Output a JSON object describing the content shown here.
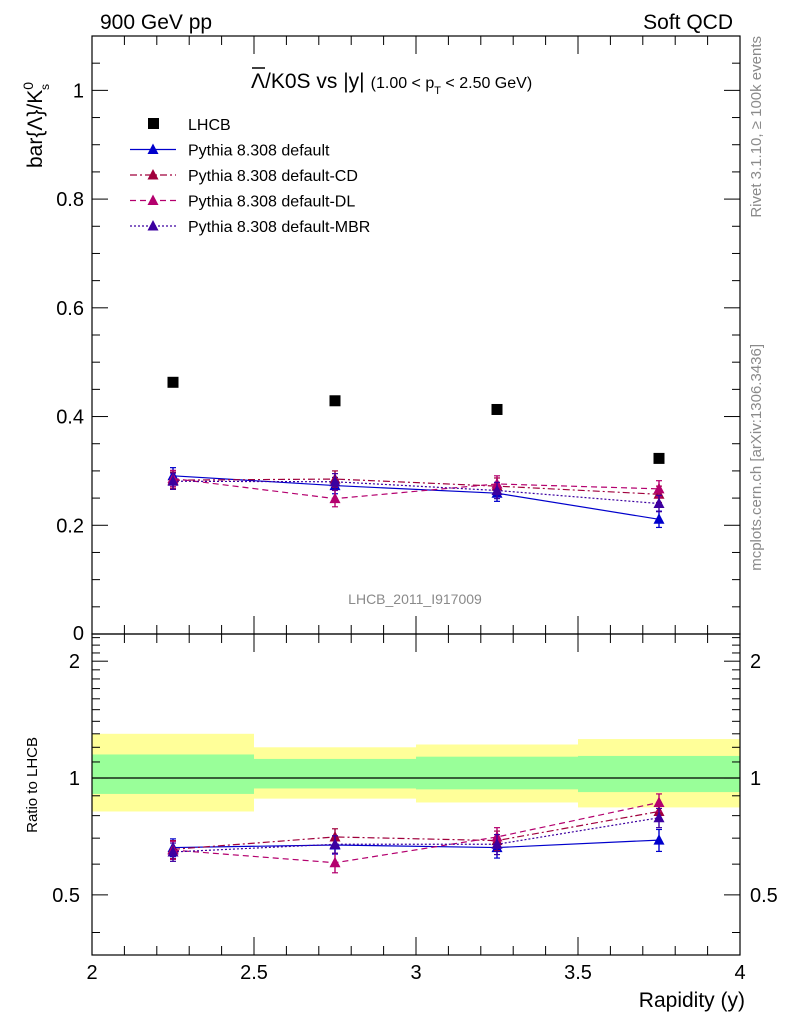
{
  "header": {
    "left": "900 GeV pp",
    "right": "Soft QCD"
  },
  "side_labels": {
    "rivet": "Rivet 3.1.10, ≥ 100k events",
    "mcplots": "mcplots.cern.ch [arXiv:1306.3436]"
  },
  "chart_data": {
    "type": "line",
    "title": "Λ̅/K0S vs |y|",
    "title_bar": "Λ",
    "title_rest": "/K0S vs |y|",
    "title_range": "(1.00 < p",
    "title_range_sub": "T",
    "title_range_end": " < 2.50 GeV)",
    "watermark": "LHCB_2011_I917009",
    "ylabel": "bar{Λ}/K",
    "ylabel_sup": "0",
    "ylabel_sub": "s",
    "xlabel": "Rapidity (y)",
    "ylim": [
      0,
      1.1
    ],
    "xlim": [
      2,
      4
    ],
    "y_ticks": [
      "0.2",
      "0.4",
      "0.6",
      "0.8",
      "1"
    ],
    "y_zero_tick": "0",
    "x_ticks": [
      "2",
      "2.5",
      "3",
      "3.5",
      "4"
    ],
    "x": [
      2.25,
      2.75,
      3.25,
      3.75
    ],
    "legend_position": "top-left",
    "data": {
      "name": "LHCB",
      "values": [
        0.463,
        0.429,
        0.413,
        0.323
      ]
    },
    "series": [
      {
        "name": "Pythia 8.308 default",
        "color": "#0000cc",
        "dash": "none",
        "values": [
          0.291,
          0.273,
          0.259,
          0.211
        ],
        "errors": [
          0.015,
          0.015,
          0.015,
          0.015
        ]
      },
      {
        "name": "Pythia 8.308 default-CD",
        "color": "#a0003c",
        "dash": "7,3,2,3",
        "values": [
          0.283,
          0.285,
          0.272,
          0.257
        ],
        "errors": [
          0.015,
          0.015,
          0.015,
          0.015
        ]
      },
      {
        "name": "Pythia 8.308 default-DL",
        "color": "#b4006e",
        "dash": "6,4",
        "values": [
          0.286,
          0.249,
          0.276,
          0.267
        ],
        "errors": [
          0.015,
          0.015,
          0.015,
          0.015
        ]
      },
      {
        "name": "Pythia 8.308 default-MBR",
        "color": "#3c00a0",
        "dash": "2,2",
        "values": [
          0.281,
          0.28,
          0.264,
          0.24
        ],
        "errors": [
          0.015,
          0.015,
          0.015,
          0.015
        ]
      }
    ],
    "ratio": {
      "ylabel": "Ratio to LHCB",
      "ylim": [
        0.35,
        2.35
      ],
      "y_ticks": [
        "0.5",
        "1",
        "2"
      ],
      "band_edges": [
        2,
        2.5,
        3,
        3.5,
        4
      ],
      "band_inner": [
        [
          0.91,
          1.15
        ],
        [
          0.94,
          1.12
        ],
        [
          0.935,
          1.135
        ],
        [
          0.92,
          1.14
        ]
      ],
      "band_outer": [
        [
          0.82,
          1.3
        ],
        [
          0.885,
          1.2
        ],
        [
          0.865,
          1.22
        ],
        [
          0.84,
          1.26
        ]
      ],
      "band_inner_color": "#99ff99",
      "band_outer_color": "#ffff99",
      "series": [
        {
          "name": "Pythia 8.308 default",
          "values": [
            0.662,
            0.672,
            0.662,
            0.692
          ],
          "errors": [
            0.035,
            0.035,
            0.04,
            0.045
          ]
        },
        {
          "name": "Pythia 8.308 default-CD",
          "values": [
            0.655,
            0.705,
            0.69,
            0.82
          ],
          "errors": [
            0.035,
            0.035,
            0.04,
            0.045
          ]
        },
        {
          "name": "Pythia 8.308 default-DL",
          "values": [
            0.652,
            0.605,
            0.705,
            0.865
          ],
          "errors": [
            0.035,
            0.035,
            0.04,
            0.045
          ]
        },
        {
          "name": "Pythia 8.308 default-MBR",
          "values": [
            0.645,
            0.675,
            0.675,
            0.79
          ],
          "errors": [
            0.035,
            0.035,
            0.04,
            0.045
          ]
        }
      ]
    }
  }
}
